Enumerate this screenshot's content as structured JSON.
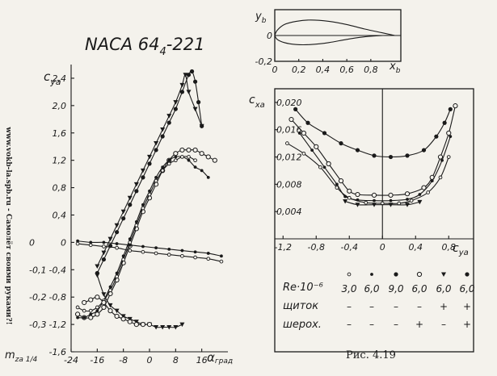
{
  "title_main": "NACA 64",
  "title_sub": "4",
  "title_suffix": "-221",
  "side_text": "www.vokb-la.spb.ru - Самолёт своими руками?!",
  "fig_label": "Рис. 4.19",
  "colors": {
    "ink": "#1a1a1a",
    "paper": "#f4f2ec"
  },
  "chart_data": [
    {
      "id": "profile",
      "type": "line",
      "ylabel_main": "y",
      "ylabel_sub": "b",
      "xlabel_main": "x",
      "xlabel_sub": "b",
      "xlim": [
        0,
        1.05
      ],
      "ylim": [
        -0.2,
        0.2
      ],
      "xticks": [
        "0",
        "0,2",
        "0,4",
        "0,6",
        "0,8"
      ],
      "xtick_values": [
        0,
        0.2,
        0.4,
        0.6,
        0.8
      ],
      "yticks": [
        "0",
        "-0,2"
      ],
      "ytick_values": [
        0,
        -0.2
      ],
      "upper": [
        [
          0,
          0
        ],
        [
          0.02,
          0.04
        ],
        [
          0.08,
          0.085
        ],
        [
          0.18,
          0.11
        ],
        [
          0.3,
          0.12
        ],
        [
          0.45,
          0.11
        ],
        [
          0.6,
          0.085
        ],
        [
          0.75,
          0.05
        ],
        [
          0.9,
          0.02
        ],
        [
          1.0,
          0.0
        ]
      ],
      "lower": [
        [
          0,
          0
        ],
        [
          0.02,
          -0.03
        ],
        [
          0.08,
          -0.055
        ],
        [
          0.18,
          -0.07
        ],
        [
          0.3,
          -0.07
        ],
        [
          0.45,
          -0.055
        ],
        [
          0.6,
          -0.03
        ],
        [
          0.75,
          -0.01
        ],
        [
          0.9,
          0.0
        ],
        [
          1.0,
          0.0
        ]
      ]
    },
    {
      "id": "lift",
      "type": "scatter",
      "ylabel_main": "c",
      "ylabel_sub": "ya",
      "xlabel_main": "α",
      "xlabel_unit": "град",
      "mlabel_main": "m",
      "mlabel_sub": "za 1/4",
      "xlim": [
        -24,
        24
      ],
      "ylim": [
        -1.6,
        2.6
      ],
      "xticks": [
        "-24",
        "-16",
        "-8",
        "0",
        "8",
        "16"
      ],
      "xtick_values": [
        -24,
        -16,
        -8,
        0,
        8,
        16
      ],
      "yticks": [
        "2,4",
        "2,0",
        "1,6",
        "1,2",
        "0,8",
        "0,4",
        "0",
        "-0,4",
        "-0,8",
        "-1,2",
        "-1,6"
      ],
      "ytick_values": [
        2.4,
        2.0,
        1.6,
        1.2,
        0.8,
        0.4,
        0,
        -0.4,
        -0.8,
        -1.2,
        -1.6
      ],
      "mticks": [
        "0",
        "-0,1",
        "-0,2",
        "-0,3"
      ],
      "mtick_values": [
        0,
        -0.1,
        -0.2,
        -0.3
      ],
      "series": [
        {
          "marker": "dot",
          "points": [
            [
              -16,
              -0.45
            ],
            [
              -14,
              -0.25
            ],
            [
              -12,
              -0.05
            ],
            [
              -10,
              0.15
            ],
            [
              -8,
              0.35
            ],
            [
              -6,
              0.55
            ],
            [
              -4,
              0.75
            ],
            [
              -2,
              0.95
            ],
            [
              0,
              1.15
            ],
            [
              2,
              1.35
            ],
            [
              4,
              1.55
            ],
            [
              6,
              1.75
            ],
            [
              8,
              1.95
            ],
            [
              10,
              2.2
            ],
            [
              12,
              2.45
            ],
            [
              13,
              2.5
            ],
            [
              14,
              2.35
            ],
            [
              15,
              2.05
            ],
            [
              16,
              1.7
            ]
          ]
        },
        {
          "marker": "tri",
          "points": [
            [
              -16,
              -0.35
            ],
            [
              -14,
              -0.15
            ],
            [
              -12,
              0.05
            ],
            [
              -10,
              0.25
            ],
            [
              -8,
              0.45
            ],
            [
              -6,
              0.65
            ],
            [
              -4,
              0.85
            ],
            [
              -2,
              1.05
            ],
            [
              0,
              1.25
            ],
            [
              2,
              1.45
            ],
            [
              4,
              1.65
            ],
            [
              6,
              1.85
            ],
            [
              8,
              2.05
            ],
            [
              10,
              2.3
            ],
            [
              11,
              2.45
            ],
            [
              12,
              2.2
            ],
            [
              14,
              1.95
            ],
            [
              16,
              1.7
            ]
          ]
        },
        {
          "marker": "circle",
          "points": [
            [
              -22,
              -1.05
            ],
            [
              -20,
              -1.1
            ],
            [
              -18,
              -1.1
            ],
            [
              -16,
              -1.05
            ],
            [
              -14,
              -0.95
            ],
            [
              -12,
              -0.75
            ],
            [
              -10,
              -0.55
            ],
            [
              -8,
              -0.3
            ],
            [
              -6,
              -0.05
            ],
            [
              -4,
              0.2
            ],
            [
              -2,
              0.45
            ],
            [
              0,
              0.65
            ],
            [
              2,
              0.85
            ],
            [
              4,
              1.05
            ],
            [
              6,
              1.2
            ],
            [
              8,
              1.3
            ],
            [
              10,
              1.35
            ],
            [
              12,
              1.35
            ],
            [
              14,
              1.35
            ],
            [
              16,
              1.3
            ],
            [
              18,
              1.25
            ],
            [
              20,
              1.2
            ]
          ]
        },
        {
          "marker": "dot-small",
          "points": [
            [
              -22,
              -1.1
            ],
            [
              -20,
              -1.1
            ],
            [
              -18,
              -1.05
            ],
            [
              -16,
              -1.0
            ],
            [
              -14,
              -0.85
            ],
            [
              -12,
              -0.65
            ],
            [
              -10,
              -0.45
            ],
            [
              -8,
              -0.2
            ],
            [
              -6,
              0.05
            ],
            [
              -4,
              0.3
            ],
            [
              -2,
              0.55
            ],
            [
              0,
              0.75
            ],
            [
              2,
              0.95
            ],
            [
              4,
              1.1
            ],
            [
              6,
              1.2
            ],
            [
              8,
              1.25
            ],
            [
              10,
              1.25
            ],
            [
              12,
              1.2
            ],
            [
              14,
              1.1
            ],
            [
              16,
              1.05
            ],
            [
              18,
              0.95
            ]
          ]
        },
        {
          "marker": "circle-small",
          "points": [
            [
              -22,
              -0.95
            ],
            [
              -20,
              -1.0
            ],
            [
              -18,
              -1.0
            ],
            [
              -16,
              -0.95
            ],
            [
              -14,
              -0.85
            ],
            [
              -12,
              -0.7
            ],
            [
              -10,
              -0.5
            ],
            [
              -8,
              -0.25
            ],
            [
              -6,
              0.0
            ],
            [
              -4,
              0.25
            ],
            [
              -2,
              0.5
            ],
            [
              0,
              0.7
            ],
            [
              2,
              0.9
            ],
            [
              4,
              1.05
            ],
            [
              6,
              1.15
            ],
            [
              8,
              1.2
            ],
            [
              10,
              1.25
            ],
            [
              12,
              1.25
            ],
            [
              14,
              1.2
            ]
          ]
        }
      ],
      "moment_series": [
        {
          "marker": "circle-small",
          "points": [
            [
              -22,
              -0.005
            ],
            [
              -18,
              -0.01
            ],
            [
              -14,
              -0.015
            ],
            [
              -10,
              -0.02
            ],
            [
              -6,
              -0.03
            ],
            [
              -2,
              -0.035
            ],
            [
              2,
              -0.04
            ],
            [
              6,
              -0.045
            ],
            [
              10,
              -0.05
            ],
            [
              14,
              -0.055
            ],
            [
              18,
              -0.06
            ],
            [
              22,
              -0.07
            ]
          ]
        },
        {
          "marker": "dot-small",
          "points": [
            [
              -22,
              0.005
            ],
            [
              -18,
              0.0
            ],
            [
              -14,
              0.0
            ],
            [
              -10,
              -0.005
            ],
            [
              -6,
              -0.01
            ],
            [
              -2,
              -0.015
            ],
            [
              2,
              -0.02
            ],
            [
              6,
              -0.025
            ],
            [
              10,
              -0.03
            ],
            [
              14,
              -0.035
            ],
            [
              18,
              -0.04
            ],
            [
              22,
              -0.05
            ]
          ]
        },
        {
          "marker": "tri",
          "points": [
            [
              -16,
              -0.12
            ],
            [
              -14,
              -0.19
            ],
            [
              -12,
              -0.23
            ],
            [
              -10,
              -0.25
            ],
            [
              -8,
              -0.27
            ],
            [
              -6,
              -0.28
            ],
            [
              -4,
              -0.29
            ],
            [
              -2,
              -0.3
            ],
            [
              0,
              -0.3
            ],
            [
              2,
              -0.31
            ],
            [
              4,
              -0.31
            ],
            [
              6,
              -0.31
            ],
            [
              8,
              -0.31
            ],
            [
              10,
              -0.3
            ]
          ]
        },
        {
          "marker": "circle",
          "points": [
            [
              -20,
              -0.22
            ],
            [
              -18,
              -0.21
            ],
            [
              -16,
              -0.2
            ],
            [
              -14,
              -0.22
            ],
            [
              -12,
              -0.25
            ],
            [
              -10,
              -0.27
            ],
            [
              -8,
              -0.28
            ],
            [
              -6,
              -0.29
            ],
            [
              -4,
              -0.3
            ],
            [
              -2,
              -0.3
            ],
            [
              0,
              -0.3
            ]
          ]
        }
      ]
    },
    {
      "id": "drag",
      "type": "scatter",
      "ylabel_main": "c",
      "ylabel_sub": "xa",
      "xlabel_main": "c",
      "xlabel_sub": "ya",
      "xlim": [
        -1.3,
        1.1
      ],
      "ylim": [
        0,
        0.022
      ],
      "xticks": [
        "-1,2",
        "-0,8",
        "-0,4",
        "0",
        "0,4",
        "0,8"
      ],
      "xtick_values": [
        -1.2,
        -0.8,
        -0.4,
        0,
        0.4,
        0.8
      ],
      "yticks": [
        "0,020",
        "0,016",
        "0,012",
        "0,008",
        "0,004"
      ],
      "ytick_values": [
        0.02,
        0.016,
        0.012,
        0.008,
        0.004
      ],
      "series": [
        {
          "marker": "dot",
          "points": [
            [
              -1.05,
              0.019
            ],
            [
              -0.9,
              0.017
            ],
            [
              -0.7,
              0.0155
            ],
            [
              -0.5,
              0.014
            ],
            [
              -0.3,
              0.013
            ],
            [
              -0.1,
              0.0122
            ],
            [
              0.1,
              0.012
            ],
            [
              0.3,
              0.0122
            ],
            [
              0.5,
              0.013
            ],
            [
              0.65,
              0.015
            ],
            [
              0.75,
              0.017
            ],
            [
              0.82,
              0.019
            ]
          ]
        },
        {
          "marker": "circle",
          "points": [
            [
              -1.1,
              0.0175
            ],
            [
              -0.95,
              0.0155
            ],
            [
              -0.8,
              0.0135
            ],
            [
              -0.65,
              0.011
            ],
            [
              -0.5,
              0.0085
            ],
            [
              -0.4,
              0.007
            ],
            [
              -0.3,
              0.0065
            ],
            [
              -0.1,
              0.0064
            ],
            [
              0.1,
              0.0064
            ],
            [
              0.3,
              0.0066
            ],
            [
              0.5,
              0.0075
            ],
            [
              0.6,
              0.009
            ],
            [
              0.7,
              0.012
            ],
            [
              0.8,
              0.0155
            ],
            [
              0.88,
              0.0195
            ]
          ]
        },
        {
          "marker": "dot-small",
          "points": [
            [
              -1.0,
              0.0155
            ],
            [
              -0.85,
              0.013
            ],
            [
              -0.7,
              0.0105
            ],
            [
              -0.55,
              0.008
            ],
            [
              -0.45,
              0.0062
            ],
            [
              -0.3,
              0.0057
            ],
            [
              -0.1,
              0.0056
            ],
            [
              0.1,
              0.0056
            ],
            [
              0.3,
              0.0058
            ],
            [
              0.45,
              0.0065
            ],
            [
              0.6,
              0.0085
            ],
            [
              0.72,
              0.0115
            ],
            [
              0.82,
              0.015
            ]
          ]
        },
        {
          "marker": "circle-small",
          "points": [
            [
              -1.15,
              0.014
            ],
            [
              -0.95,
              0.0125
            ],
            [
              -0.75,
              0.0105
            ],
            [
              -0.55,
              0.0075
            ],
            [
              -0.4,
              0.006
            ],
            [
              -0.2,
              0.0053
            ],
            [
              0,
              0.0052
            ],
            [
              0.2,
              0.0052
            ],
            [
              0.35,
              0.0056
            ],
            [
              0.55,
              0.0068
            ],
            [
              0.7,
              0.009
            ],
            [
              0.8,
              0.012
            ]
          ]
        },
        {
          "marker": "tri",
          "points": [
            [
              -0.45,
              0.0055
            ],
            [
              -0.3,
              0.005
            ],
            [
              -0.1,
              0.005
            ],
            [
              0.1,
              0.005
            ],
            [
              0.3,
              0.005
            ],
            [
              0.45,
              0.0054
            ]
          ]
        }
      ]
    }
  ],
  "legend_table": {
    "row_labels": [
      "Re·10⁻⁶",
      "щиток",
      "шерох."
    ],
    "markers": [
      "circle-small",
      "dot-small",
      "dot",
      "circle",
      "tri",
      "dot"
    ],
    "re_values": [
      "3,0",
      "6,0",
      "9,0",
      "6,0",
      "6,0",
      "6,0"
    ],
    "flap": [
      "–",
      "–",
      "–",
      "–",
      "+",
      "+"
    ],
    "rough": [
      "–",
      "–",
      "–",
      "+",
      "–",
      "+"
    ]
  }
}
